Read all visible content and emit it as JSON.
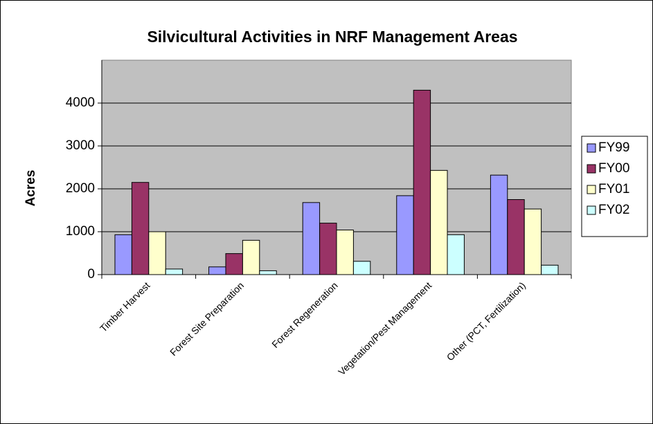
{
  "chart_data": {
    "type": "bar",
    "title": "Silvicultural Activities in NRF Management Areas",
    "y_label": "Acres",
    "categories": [
      "Timber Harvest",
      "Forest Site Preparation",
      "Forest Regeneration",
      "Vegetation/Pest Management",
      "Other (PCT, Fertilization)"
    ],
    "series": [
      {
        "name": "FY99",
        "color": "#9999ff",
        "values": [
          930,
          180,
          1680,
          1840,
          2320
        ]
      },
      {
        "name": "FY00",
        "color": "#993366",
        "values": [
          2150,
          490,
          1200,
          4300,
          1750
        ]
      },
      {
        "name": "FY01",
        "color": "#ffffcc",
        "values": [
          1000,
          800,
          1040,
          2430,
          1530
        ]
      },
      {
        "name": "FY02",
        "color": "#ccffff",
        "values": [
          130,
          90,
          310,
          930,
          220
        ]
      }
    ],
    "ylim": [
      0,
      5000
    ],
    "yticks": [
      0,
      1000,
      2000,
      3000,
      4000
    ],
    "grid": true,
    "legend": "right"
  }
}
